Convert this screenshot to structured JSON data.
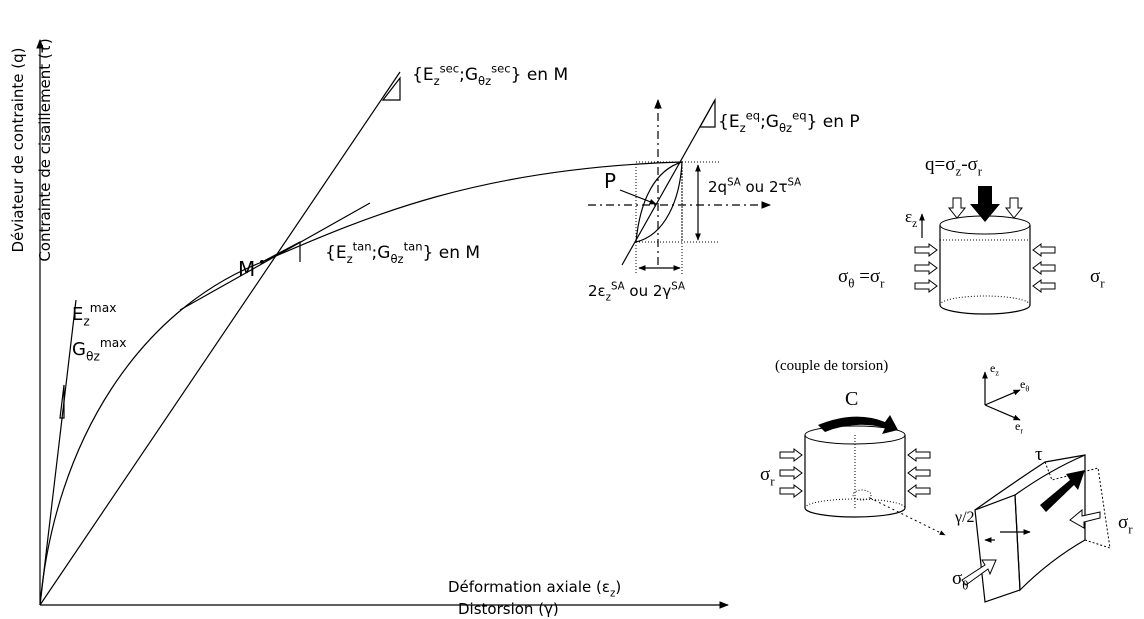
{
  "axes": {
    "y_primary": "Déviateur de contrainte (q)",
    "y_secondary": "Contrainte de cisaillement (τ)",
    "x_primary": [
      {
        "text": "Déformation axiale (ε"
      },
      {
        "sub": "z"
      },
      {
        "text": ")"
      }
    ],
    "x_secondary": "Distorsion (γ)"
  },
  "points": {
    "M": "M",
    "P": "P"
  },
  "moduli": {
    "E_max": [
      {
        "text": "E"
      },
      {
        "sub": "z"
      },
      {
        "sup": "max"
      }
    ],
    "G_max": [
      {
        "text": "G"
      },
      {
        "sub": "θz"
      },
      {
        "sup": "max"
      }
    ],
    "secant": [
      {
        "text": "{E"
      },
      {
        "sub": "z"
      },
      {
        "sup": "sec"
      },
      {
        "text": ";G"
      },
      {
        "sub": "θz"
      },
      {
        "sup": "sec"
      },
      {
        "text": "} en M"
      }
    ],
    "tangent": [
      {
        "text": "{E"
      },
      {
        "sub": "z"
      },
      {
        "sup": "tan"
      },
      {
        "text": ";G"
      },
      {
        "sub": "θz"
      },
      {
        "sup": "tan"
      },
      {
        "text": "} en M"
      }
    ],
    "equivalent": [
      {
        "text": "{E"
      },
      {
        "sub": "z"
      },
      {
        "sup": "eq"
      },
      {
        "text": ";G"
      },
      {
        "sub": "θz"
      },
      {
        "sup": "eq"
      },
      {
        "text": "} en P"
      }
    ]
  },
  "cycle": {
    "amplitude": [
      {
        "text": "2q"
      },
      {
        "sup": "SA"
      },
      {
        "text": " ou 2τ"
      },
      {
        "sup": "SA"
      }
    ],
    "strain": [
      {
        "text": "2ε"
      },
      {
        "sub": "z"
      },
      {
        "sup": "SA"
      },
      {
        "text": " ou 2γ"
      },
      {
        "sup": "SA"
      }
    ]
  },
  "triaxial": {
    "deviator": [
      {
        "text": "q=σ"
      },
      {
        "sub": "z"
      },
      {
        "text": "-σ"
      },
      {
        "sub": "r"
      }
    ],
    "strain": [
      {
        "text": "ε"
      },
      {
        "sub": "z"
      }
    ],
    "sigma_left": [
      {
        "text": "σ"
      },
      {
        "sub": "θ"
      },
      {
        "text": " =σ"
      },
      {
        "sub": "r"
      }
    ],
    "sigma_right": [
      {
        "text": "σ"
      },
      {
        "sub": "r"
      }
    ]
  },
  "basis": {
    "ez": [
      {
        "text": "e"
      },
      {
        "sub": "z"
      }
    ],
    "etheta": [
      {
        "text": "e"
      },
      {
        "sub": "θ"
      }
    ],
    "er": [
      {
        "text": "e"
      },
      {
        "sub": "r"
      }
    ]
  },
  "torsion": {
    "caption": "(couple de torsion)",
    "couple": "C",
    "sigma_r": [
      {
        "text": "σ"
      },
      {
        "sub": "r"
      }
    ],
    "tau": "τ",
    "gamma_half": "γ/2",
    "element_sigma_r": [
      {
        "text": "σ"
      },
      {
        "sub": "r"
      }
    ],
    "element_sigma_theta": [
      {
        "text": "σ"
      },
      {
        "sub": "θ"
      }
    ]
  }
}
